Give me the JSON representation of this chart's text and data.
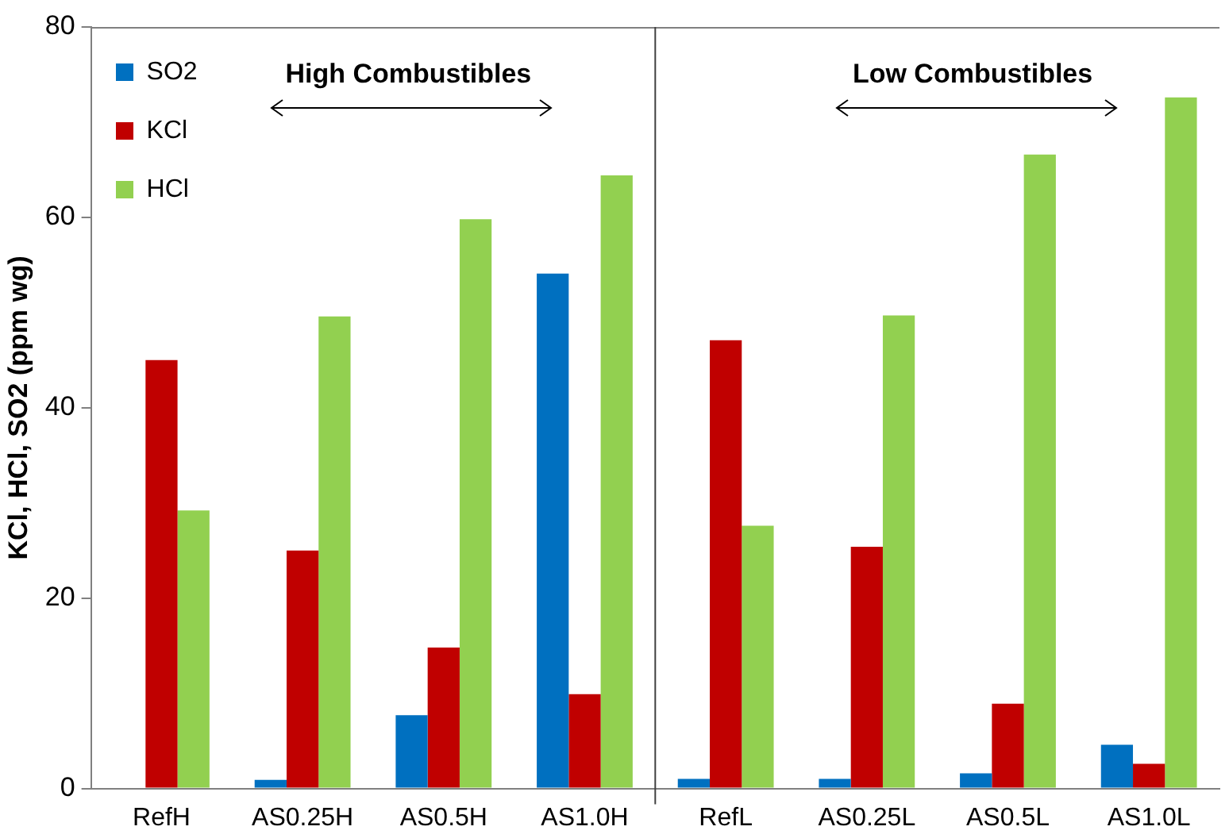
{
  "chart_data": {
    "type": "bar",
    "ylabel": "KCl, HCl, SO2 (ppm wg)",
    "categories": [
      "RefH",
      "AS0.25H",
      "AS0.5H",
      "AS1.0H",
      "RefL",
      "AS0.25L",
      "AS0.5L",
      "AS1.0L"
    ],
    "series": [
      {
        "name": "SO2",
        "color": "#0070c0",
        "values": [
          0,
          0.9,
          7.7,
          54.1,
          1.0,
          1.0,
          1.6,
          4.6
        ]
      },
      {
        "name": "KCl",
        "color": "#c00000",
        "values": [
          45.0,
          25.0,
          14.8,
          9.9,
          47.1,
          25.4,
          8.9,
          2.6
        ]
      },
      {
        "name": "HCl",
        "color": "#92d050",
        "values": [
          29.2,
          49.6,
          59.8,
          64.4,
          27.6,
          49.7,
          66.6,
          72.6
        ]
      }
    ],
    "ylim": [
      0,
      80
    ],
    "yticks": [
      0,
      20,
      40,
      60,
      80
    ],
    "grid": false,
    "legend": "top left",
    "annotations": [
      "High Combustibles",
      "Low Combustibles"
    ]
  }
}
